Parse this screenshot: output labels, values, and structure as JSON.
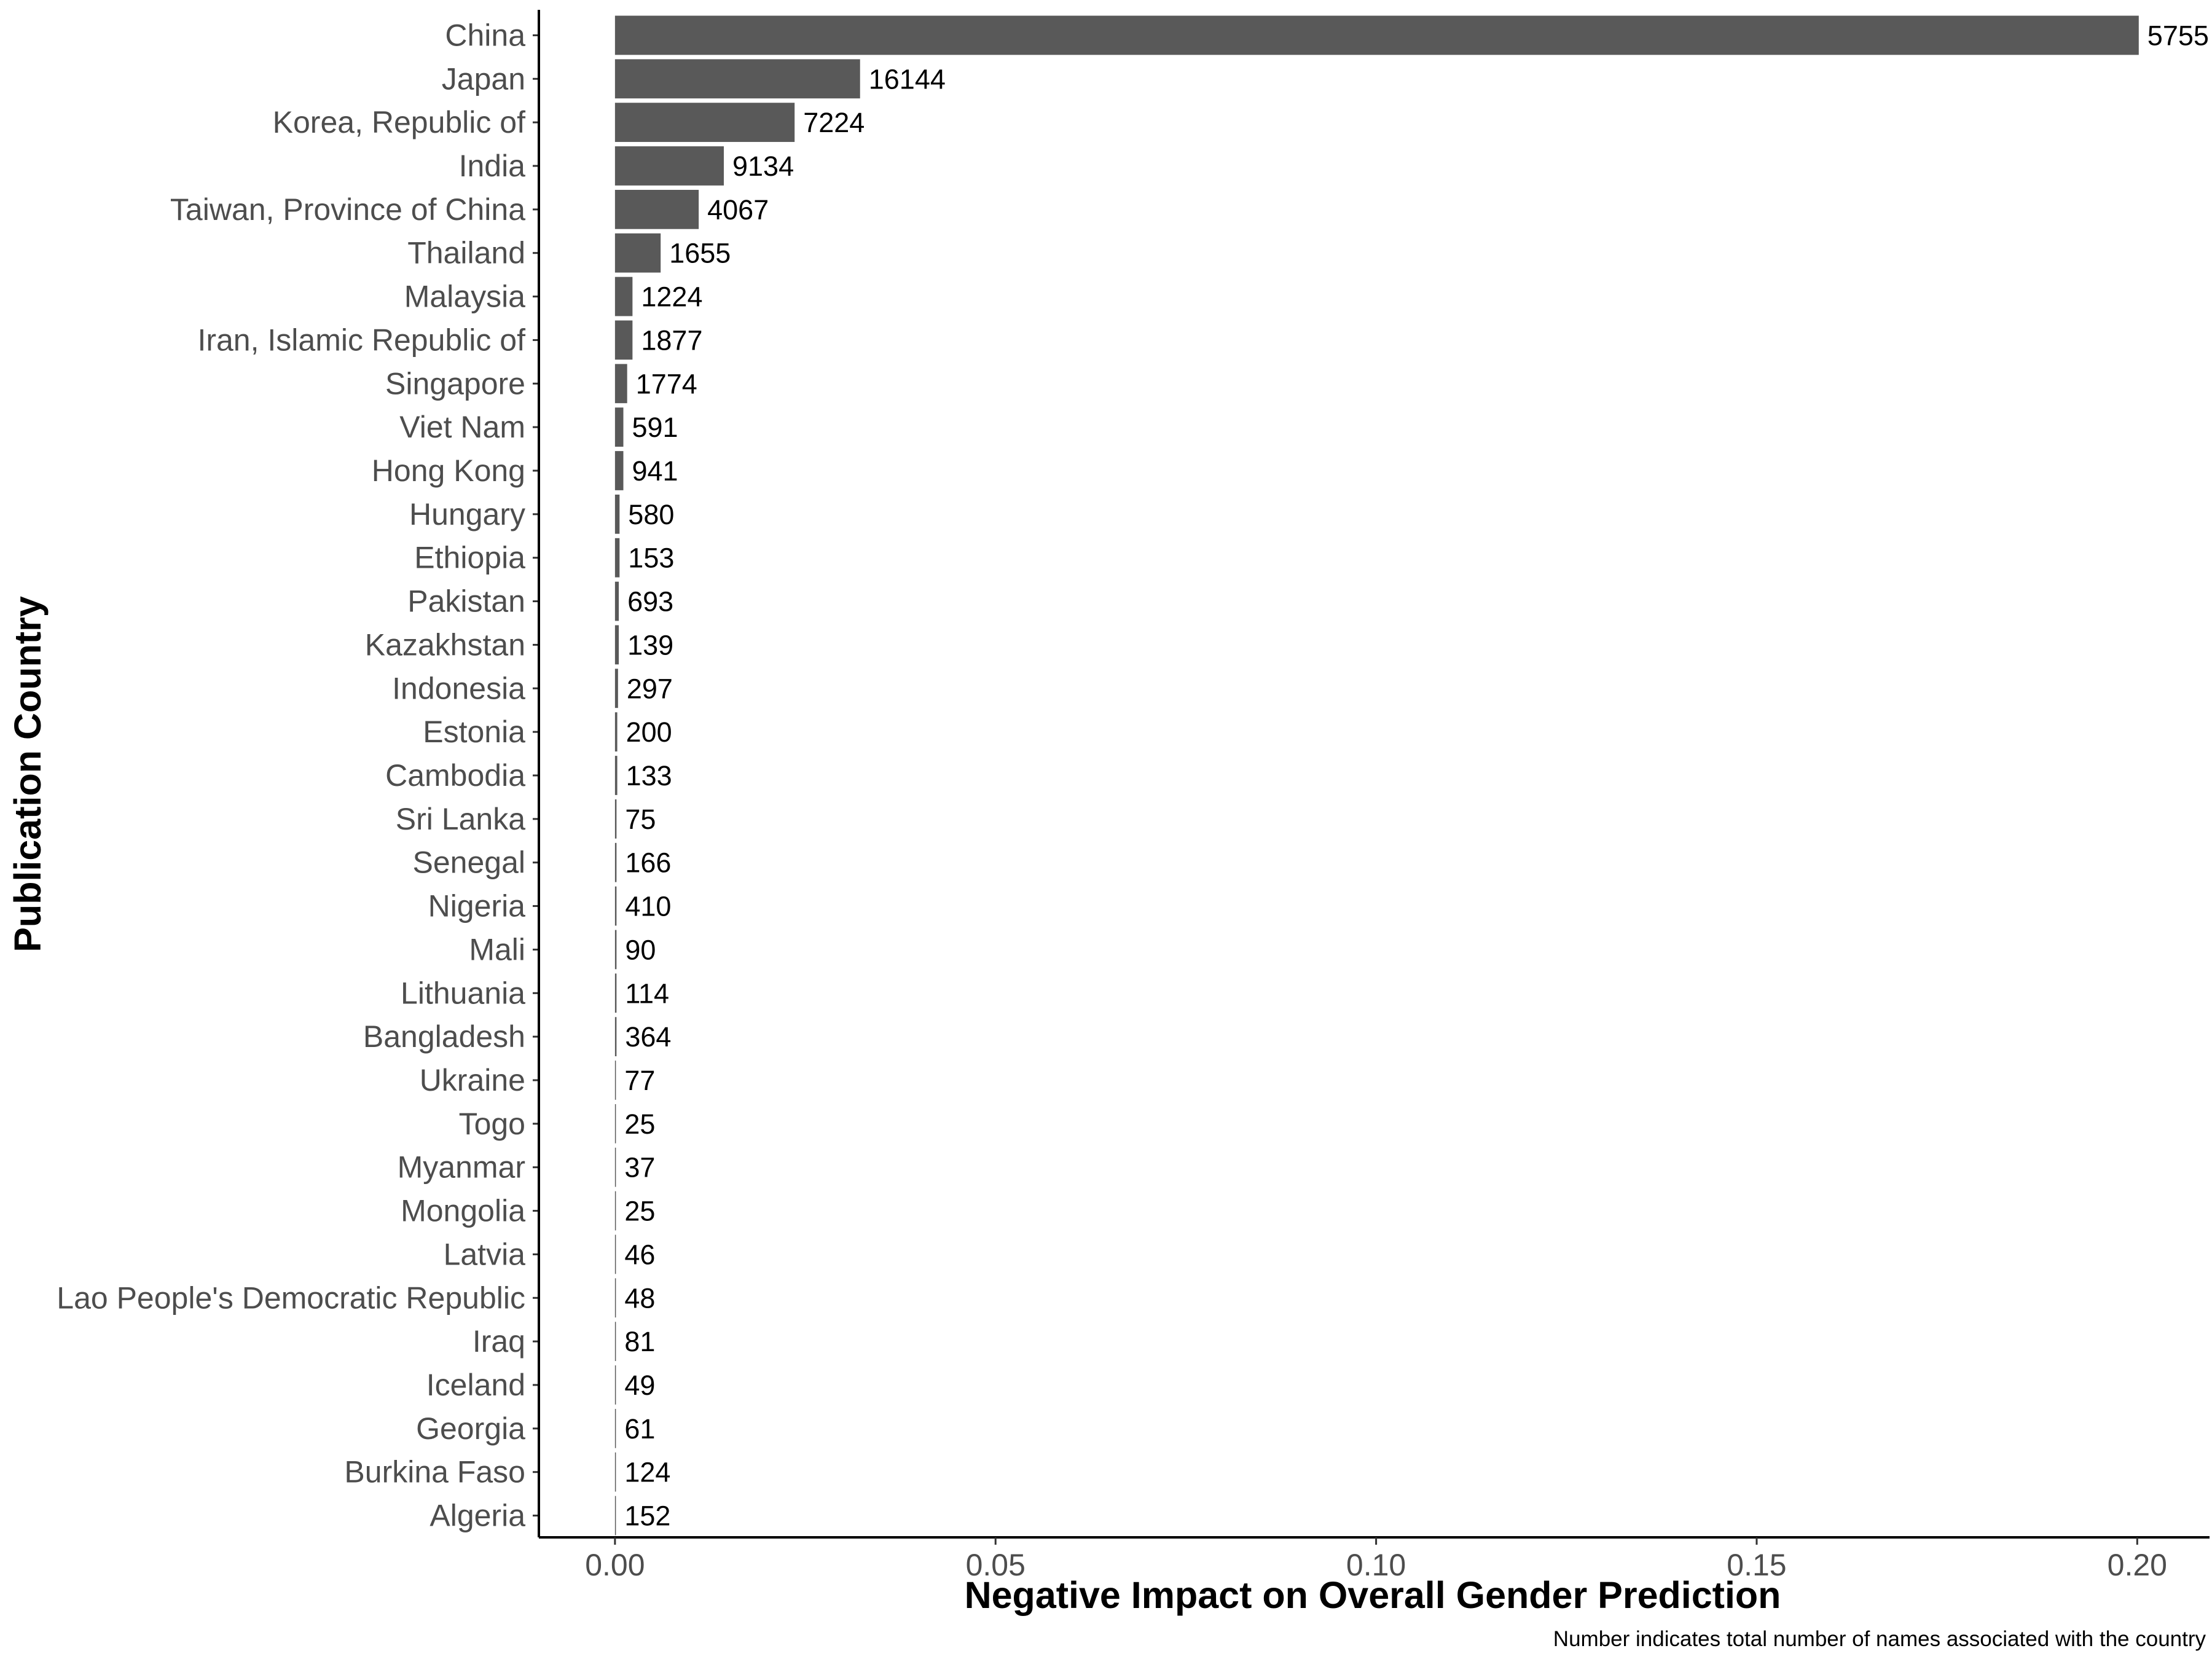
{
  "chart_data": {
    "type": "bar",
    "orientation": "horizontal",
    "xlabel": "Negative Impact on Overall Gender Prediction",
    "ylabel": "Publication Country",
    "caption": "Number indicates total number of names associated with the country",
    "xlim": [
      -0.01,
      0.2095
    ],
    "xticks": [
      0.0,
      0.05,
      0.1,
      0.15,
      0.2
    ],
    "xtick_labels": [
      "0.00",
      "0.05",
      "0.10",
      "0.15",
      "0.20"
    ],
    "grid": false,
    "bar_color": "#595959",
    "categories": [
      "China",
      "Japan",
      "Korea, Republic of",
      "India",
      "Taiwan, Province of China",
      "Thailand",
      "Malaysia",
      "Iran, Islamic Republic of",
      "Singapore",
      "Viet Nam",
      "Hong Kong",
      "Hungary",
      "Ethiopia",
      "Pakistan",
      "Kazakhstan",
      "Indonesia",
      "Estonia",
      "Cambodia",
      "Sri Lanka",
      "Senegal",
      "Nigeria",
      "Mali",
      "Lithuania",
      "Bangladesh",
      "Ukraine",
      "Togo",
      "Myanmar",
      "Mongolia",
      "Latvia",
      "Lao People's Democratic Republic",
      "Iraq",
      "Iceland",
      "Georgia",
      "Burkina Faso",
      "Algeria"
    ],
    "values": [
      0.2002,
      0.0322,
      0.0236,
      0.0143,
      0.011,
      0.006,
      0.0023,
      0.0023,
      0.0016,
      0.0011,
      0.0011,
      0.0006,
      0.0006,
      0.0005,
      0.0005,
      0.0004,
      0.0003,
      0.0003,
      0.0002,
      0.0002,
      0.0002,
      0.0002,
      0.0002,
      0.0002,
      0.0001,
      0.0001,
      0.0001,
      0.0001,
      0.0001,
      0.0001,
      0.0001,
      0.0001,
      0.0001,
      0.0001,
      0.0001
    ],
    "data_labels": [
      "5755",
      "16144",
      "7224",
      "9134",
      "4067",
      "1655",
      "1224",
      "1877",
      "1774",
      "591",
      "941",
      "580",
      "153",
      "693",
      "139",
      "297",
      "200",
      "133",
      "75",
      "166",
      "410",
      "90",
      "114",
      "364",
      "77",
      "25",
      "37",
      "25",
      "46",
      "48",
      "81",
      "49",
      "61",
      "124",
      "152"
    ]
  }
}
